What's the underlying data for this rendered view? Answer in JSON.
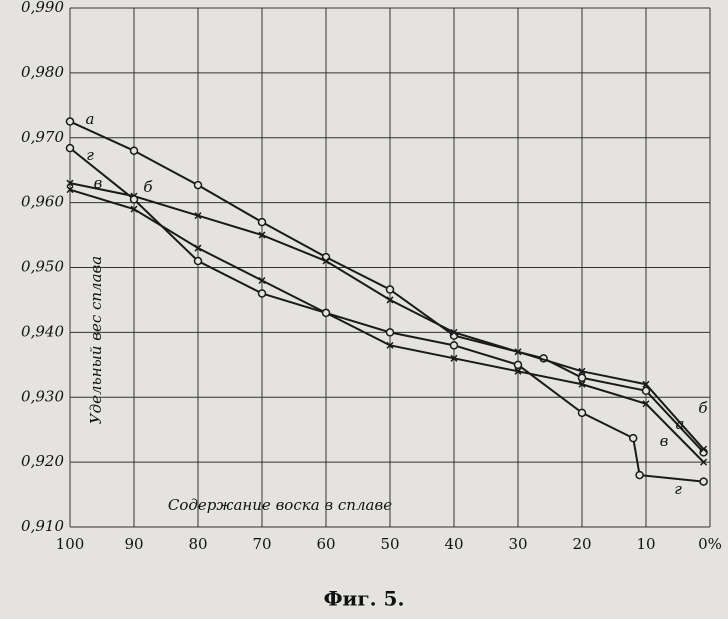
{
  "chart_data": {
    "type": "line",
    "title": "Фиг. 5.",
    "x_label": "Содержание воска в сплаве",
    "y_label": "Удельный вес сплава",
    "xlim": [
      100,
      0
    ],
    "ylim": [
      0.91,
      0.99
    ],
    "xticks": [
      100,
      90,
      80,
      70,
      60,
      50,
      40,
      30,
      20,
      10,
      {
        "value": 0,
        "label": "0%"
      }
    ],
    "yticks": [
      {
        "value": 0.91,
        "label": "0,910"
      },
      {
        "value": 0.92,
        "label": "0,920"
      },
      {
        "value": 0.93,
        "label": "0,930"
      },
      {
        "value": 0.94,
        "label": "0,940"
      },
      {
        "value": 0.95,
        "label": "0,950"
      },
      {
        "value": 0.96,
        "label": "0,960"
      },
      {
        "value": 0.97,
        "label": "0,970"
      },
      {
        "value": 0.98,
        "label": "0,980"
      },
      {
        "value": 0.99,
        "label": "0,990"
      }
    ],
    "grid": true,
    "series": [
      {
        "name": "а",
        "color": "#1a1a1a",
        "x": [
          100,
          90,
          80,
          70,
          60,
          50,
          40,
          26,
          20,
          10,
          1
        ],
        "values": [
          0.9725,
          0.968,
          0.9627,
          0.957,
          0.9516,
          0.9466,
          0.9395,
          0.936,
          0.933,
          0.931,
          0.9215
        ]
      },
      {
        "name": "б",
        "color": "#1a1a1a",
        "x": [
          100,
          90,
          80,
          70,
          60,
          50,
          40,
          30,
          20,
          10,
          1
        ],
        "values": [
          0.963,
          0.961,
          0.958,
          0.955,
          0.951,
          0.945,
          0.94,
          0.937,
          0.934,
          0.932,
          0.922
        ]
      },
      {
        "name": "в",
        "color": "#1a1a1a",
        "x": [
          100,
          90,
          80,
          70,
          60,
          50,
          40,
          30,
          20,
          10,
          1
        ],
        "values": [
          0.962,
          0.959,
          0.953,
          0.948,
          0.943,
          0.938,
          0.936,
          0.934,
          0.932,
          0.929,
          0.92
        ]
      },
      {
        "name": "г",
        "color": "#1a1a1a",
        "x": [
          100,
          90,
          80,
          70,
          60,
          50,
          40,
          30,
          20,
          12,
          11,
          1
        ],
        "values": [
          0.9684,
          0.9605,
          0.951,
          0.946,
          0.943,
          0.94,
          0.938,
          0.935,
          0.9276,
          0.9237,
          0.918,
          0.917
        ]
      }
    ]
  }
}
